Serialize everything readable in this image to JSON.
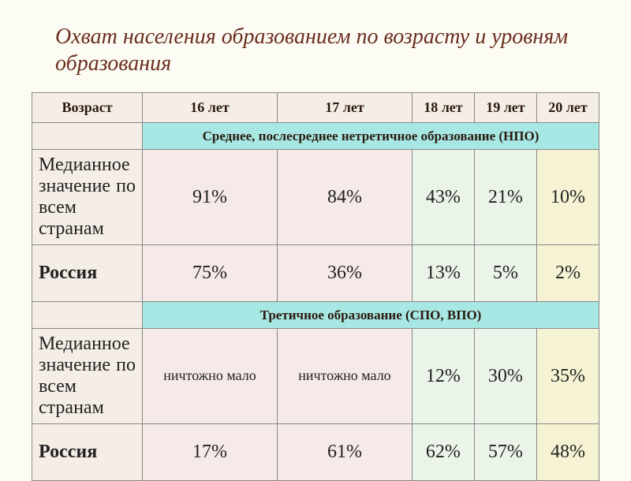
{
  "title": "Охват населения образованием по возрасту и уровням образования",
  "headers": {
    "age": "Возраст",
    "cols": [
      "16 лет",
      "17 лет",
      "18 лет",
      "19 лет",
      "20 лет"
    ]
  },
  "colColors": [
    "#f6e9e9",
    "#f6e9e9",
    "#ebf4e9",
    "#ebf4e9",
    "#f6f3d4"
  ],
  "sections": [
    {
      "title": "Среднее, послесреднее нетретичное образование (НПО)",
      "rows": [
        {
          "label": "Медианное значение по всем странам",
          "labelClass": "label-cell",
          "values": [
            "91%",
            "84%",
            "43%",
            "21%",
            "10%"
          ]
        },
        {
          "label": "Россия",
          "labelClass": "russia-label",
          "values": [
            "75%",
            "36%",
            "13%",
            "5%",
            "2%"
          ]
        }
      ]
    },
    {
      "title": "Третичное образование (СПО, ВПО)",
      "rows": [
        {
          "label": "Медианное значение по всем странам",
          "labelClass": "label-cell",
          "values": [
            "ничтожно мало",
            "ничтожно мало",
            "12%",
            "30%",
            "35%"
          ]
        },
        {
          "label": "Россия",
          "labelClass": "russia-label",
          "values": [
            "17%",
            "61%",
            "62%",
            "57%",
            "48%"
          ]
        }
      ]
    }
  ],
  "styling": {
    "background_color": "#fdfcf4",
    "title_color": "#6b2e1f",
    "title_fontsize": 28,
    "title_italic": true,
    "header_bg": "#f5eee6",
    "section_bg": "#a8e8e4",
    "border_color": "#888888",
    "russia_color": "#b02020",
    "data_fontsize": 24,
    "small_data_fontsize": 18,
    "header_fontsize": 18
  }
}
